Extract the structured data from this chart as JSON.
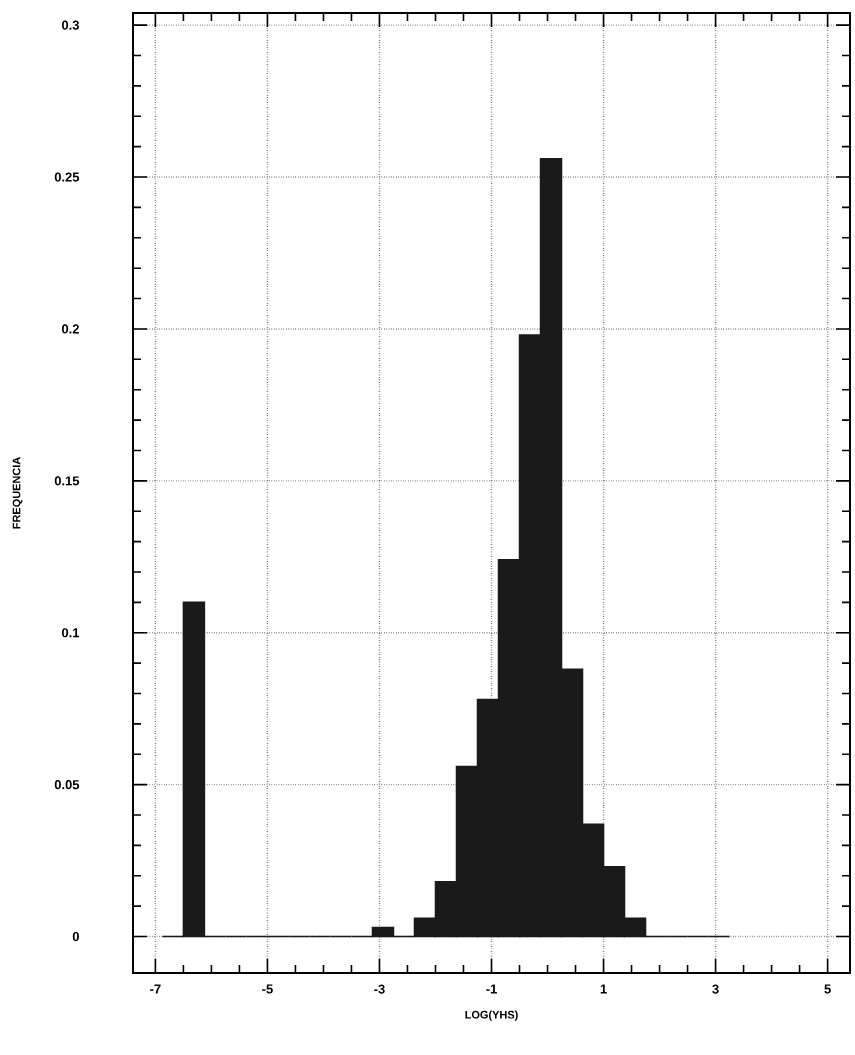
{
  "chart_data": {
    "type": "histogram",
    "xlabel": "LOG(YHS)",
    "ylabel": "FREQUENCIA",
    "bins": [
      -6.875,
      -6.5,
      -6.125,
      -5.75,
      -5.375,
      -5.0,
      -4.625,
      -4.25,
      -3.875,
      -3.5,
      -3.125,
      -2.75,
      -2.375,
      -2.0,
      -1.625,
      -1.25,
      -0.875,
      -0.5,
      -0.125,
      0.25,
      0.625,
      1.0,
      1.375,
      1.75,
      2.125,
      2.5,
      2.875,
      3.25
    ],
    "values": [
      0,
      0.11,
      0,
      0,
      0,
      0,
      0,
      0,
      0,
      0,
      0.003,
      0,
      0.006,
      0.018,
      0.056,
      0.078,
      0.124,
      0.198,
      0.256,
      0.088,
      0.037,
      0.023,
      0.006,
      0,
      0,
      0,
      0
    ],
    "color": "#1a1a1a",
    "xlim": [
      -7.4,
      5.4
    ],
    "ylim": [
      -0.012,
      0.304
    ],
    "xticks": [
      -7,
      -5,
      -3,
      -1,
      1,
      3,
      5
    ],
    "yticks": [
      0,
      0.05,
      0.1,
      0.15,
      0.2,
      0.25,
      0.3
    ],
    "grid": true
  }
}
